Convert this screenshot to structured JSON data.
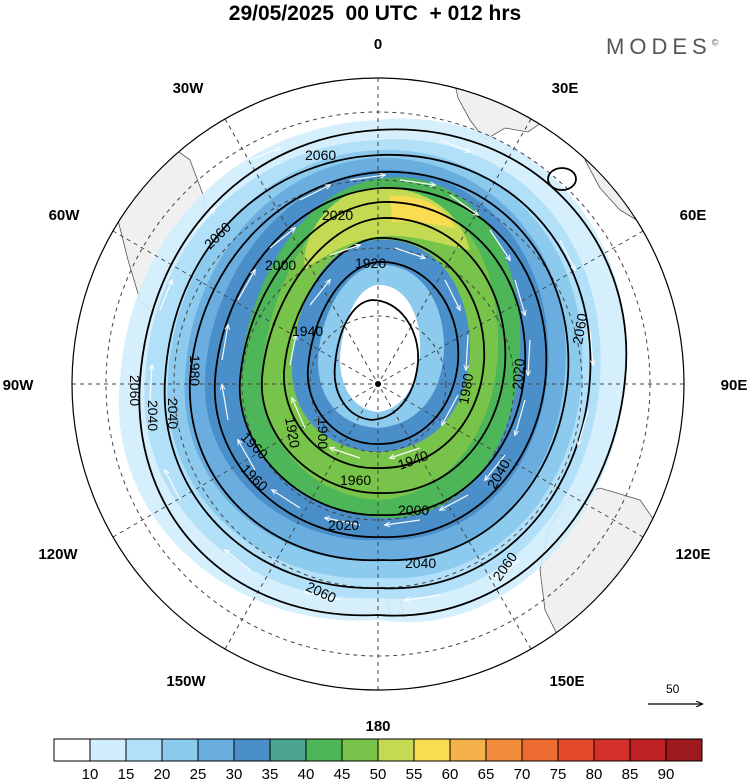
{
  "title": "29/05/2025  00 UTC  + 012 hrs",
  "brand": "MODES",
  "brand_mark": "©",
  "longitude_labels": [
    "0",
    "30E",
    "60E",
    "90E",
    "120E",
    "150E",
    "180",
    "150W",
    "120W",
    "90W",
    "60W",
    "30W"
  ],
  "contour_levels": [
    "1900",
    "1920",
    "1940",
    "1960",
    "1980",
    "2000",
    "2020",
    "2040",
    "2060"
  ],
  "contour_labels": [
    "2060",
    "2020",
    "2000",
    "1920",
    "1940",
    "1900",
    "1920",
    "1960",
    "2060",
    "2060",
    "2040",
    "2060",
    "1980",
    "1960",
    "2000",
    "2020",
    "2040",
    "2060",
    "2060",
    "2040",
    "1940",
    "1960",
    "1980",
    "2020",
    "2040"
  ],
  "reference_vector": {
    "label": "50"
  },
  "colorbar": {
    "colors": [
      "#ffffff",
      "#d0eefc",
      "#b2e0f8",
      "#8ccaee",
      "#6aaedf",
      "#4a8fc9",
      "#4ba58f",
      "#4cb659",
      "#78c349",
      "#c3da52",
      "#f9dc52",
      "#f6b24a",
      "#f18d3c",
      "#ec6b31",
      "#e44a2a",
      "#d4312a",
      "#bd2124",
      "#9e1a1f"
    ],
    "tick_labels": [
      "10",
      "15",
      "20",
      "25",
      "30",
      "35",
      "40",
      "45",
      "50",
      "55",
      "60",
      "65",
      "70",
      "75",
      "80",
      "85",
      "90"
    ]
  }
}
